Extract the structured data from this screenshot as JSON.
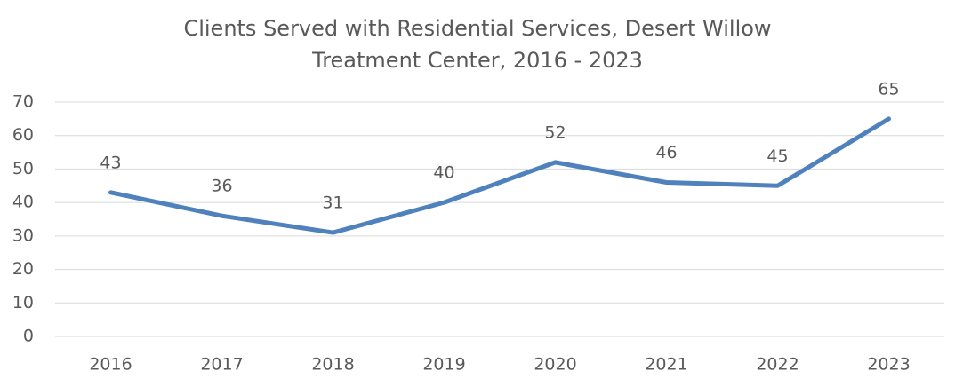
{
  "chart_data": {
    "type": "line",
    "title": "Clients Served with Residential Services, Desert Willow Treatment Center, 2016 - 2023",
    "categories": [
      "2016",
      "2017",
      "2018",
      "2019",
      "2020",
      "2021",
      "2022",
      "2023"
    ],
    "values": [
      43,
      36,
      31,
      40,
      52,
      46,
      45,
      65
    ],
    "color": "#4f81bd",
    "ylim": [
      0,
      70
    ],
    "yticks": [
      0,
      10,
      20,
      30,
      40,
      50,
      60,
      70
    ],
    "grid": true
  }
}
